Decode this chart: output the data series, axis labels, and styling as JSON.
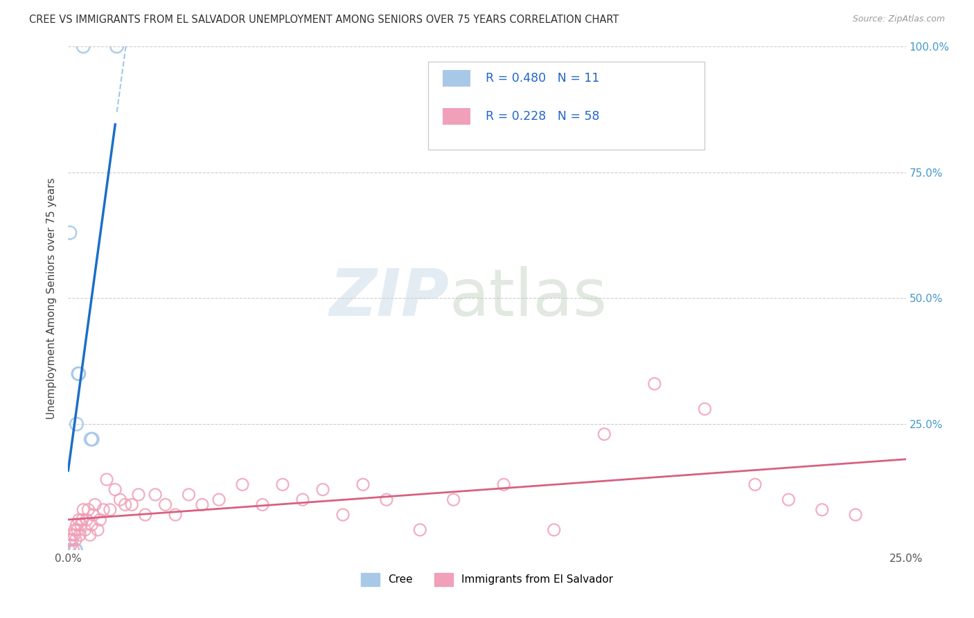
{
  "title": "CREE VS IMMIGRANTS FROM EL SALVADOR UNEMPLOYMENT AMONG SENIORS OVER 75 YEARS CORRELATION CHART",
  "source": "Source: ZipAtlas.com",
  "ylabel_left": "Unemployment Among Seniors over 75 years",
  "legend_label1": "Cree",
  "legend_label2": "Immigrants from El Salvador",
  "R_cree": 0.48,
  "N_cree": 11,
  "R_salvador": 0.228,
  "N_salvador": 58,
  "cree_color": "#a8c8e8",
  "cree_line_color": "#1a6fc8",
  "salvador_color": "#f0a0b8",
  "salvador_line_color": "#d86080",
  "cree_x": [
    0.05,
    0.45,
    1.45,
    0.22,
    0.22,
    0.25,
    0.3,
    0.32,
    0.68,
    0.72,
    0.0
  ],
  "cree_y": [
    63,
    100,
    100,
    0,
    0,
    25,
    35,
    35,
    22,
    22,
    0
  ],
  "salvador_x": [
    0.05,
    0.08,
    0.1,
    0.12,
    0.15,
    0.18,
    0.2,
    0.22,
    0.25,
    0.28,
    0.32,
    0.35,
    0.38,
    0.42,
    0.45,
    0.5,
    0.55,
    0.6,
    0.65,
    0.7,
    0.75,
    0.8,
    0.88,
    0.95,
    1.05,
    1.15,
    1.25,
    1.4,
    1.55,
    1.7,
    1.9,
    2.1,
    2.3,
    2.6,
    2.9,
    3.2,
    3.6,
    4.0,
    4.5,
    5.2,
    5.8,
    6.4,
    7.0,
    7.6,
    8.2,
    8.8,
    9.5,
    10.5,
    11.5,
    13.0,
    14.5,
    16.0,
    17.5,
    19.0,
    20.5,
    21.5,
    22.5,
    23.5
  ],
  "salvador_y": [
    2,
    1,
    3,
    2,
    0,
    3,
    4,
    2,
    5,
    4,
    6,
    3,
    5,
    6,
    8,
    4,
    6,
    8,
    3,
    5,
    7,
    9,
    4,
    6,
    8,
    14,
    8,
    12,
    10,
    9,
    9,
    11,
    7,
    11,
    9,
    7,
    11,
    9,
    10,
    13,
    9,
    13,
    10,
    12,
    7,
    13,
    10,
    4,
    10,
    13,
    4,
    23,
    33,
    28,
    13,
    10,
    8,
    7
  ],
  "bg_color": "#ffffff",
  "grid_color": "#cccccc",
  "xlim": [
    0,
    25
  ],
  "ylim": [
    0,
    100
  ],
  "right_tick_color": "#4499cc",
  "watermark_zip": "ZIP",
  "watermark_atlas": "atlas"
}
